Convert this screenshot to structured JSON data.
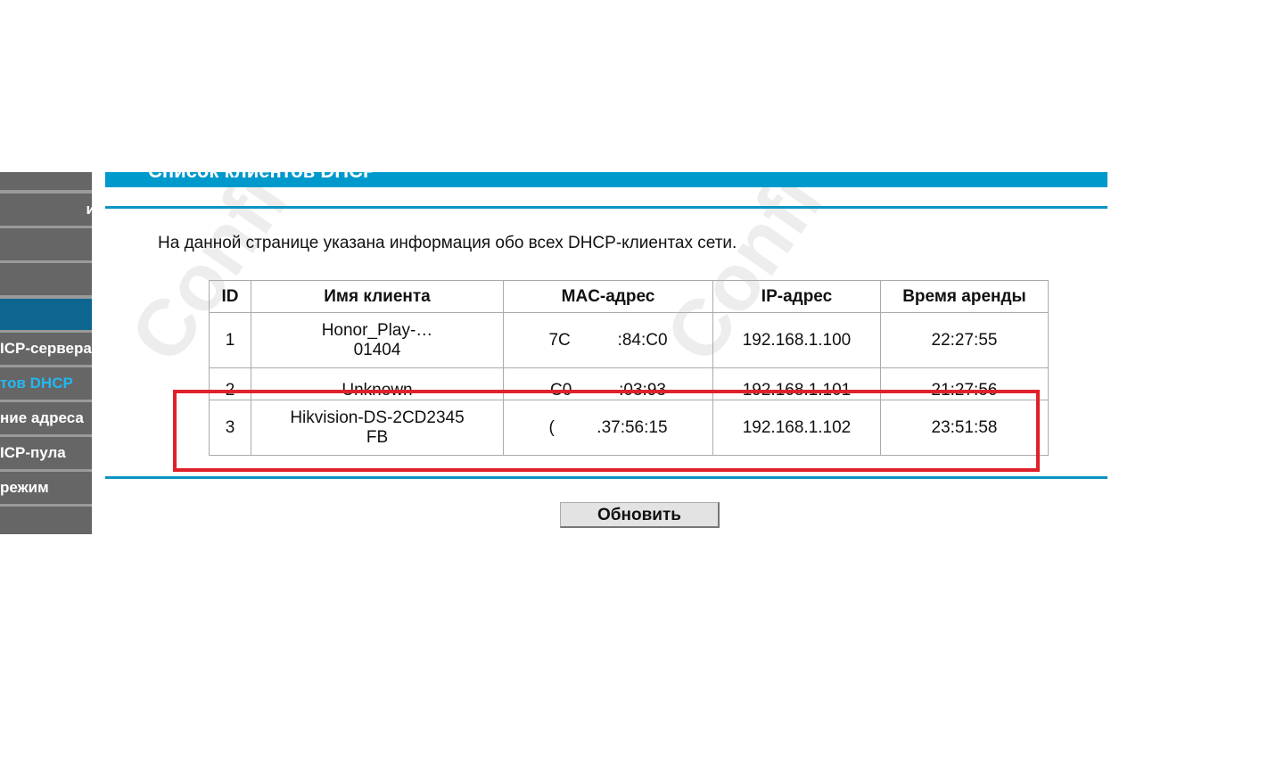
{
  "sidebar": {
    "items": [
      {
        "label": ""
      },
      {
        "label": "и"
      },
      {
        "label": ""
      },
      {
        "label": ""
      },
      {
        "label": ""
      },
      {
        "label": "ICP-сервера"
      },
      {
        "label": "тов DHCP"
      },
      {
        "label": "ние адреса"
      },
      {
        "label": "ICP-пула"
      },
      {
        "label": "режим"
      },
      {
        "label": ""
      }
    ]
  },
  "page": {
    "title": "Список клиентов DHCP",
    "intro": "На данной странице указана информация обо всех DHCP-клиентах сети.",
    "refresh_label": "Обновить"
  },
  "table": {
    "headers": [
      "ID",
      "Имя клиента",
      "MAC-адрес",
      "IP-адрес",
      "Время аренды"
    ],
    "rows": [
      {
        "id": "1",
        "name": "Honor_Play-…",
        "name2": "01404",
        "mac": "7C          :84:C0",
        "ip": "192.168.1.100",
        "lease": "22:27:55"
      },
      {
        "id": "2",
        "name": "Unknown",
        "name2": "",
        "mac": "C0          :03:93",
        "ip": "192.168.1.101",
        "lease": "21:27:56"
      },
      {
        "id": "3",
        "name": "Hikvision-DS-2CD2345",
        "name2": "FB",
        "mac": "(         .37:56:15",
        "ip": "192.168.1.102",
        "lease": "23:51:58"
      }
    ]
  },
  "watermark": "Confidential Only For TP-Link",
  "colors": {
    "accent": "#0099cc",
    "highlight": "#e0202a",
    "sidebar": "#666666",
    "sidebar_active": "#0d6690",
    "current_link": "#22b8f0"
  }
}
